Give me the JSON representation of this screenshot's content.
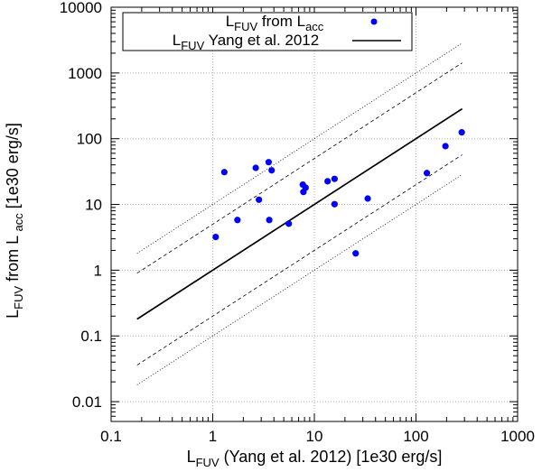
{
  "chart_data": {
    "type": "scatter",
    "x_scale": "log",
    "y_scale": "log",
    "xlim": [
      0.1,
      1000
    ],
    "ylim": [
      0.005,
      10000
    ],
    "grid": true,
    "legend_position": "top-left",
    "x_ticks": [
      {
        "value": 0.1,
        "label": "0.1"
      },
      {
        "value": 1,
        "label": "1"
      },
      {
        "value": 10,
        "label": "10"
      },
      {
        "value": 100,
        "label": "100"
      },
      {
        "value": 1000,
        "label": "1000"
      }
    ],
    "y_ticks": [
      {
        "value": 0.01,
        "label": "0.01"
      },
      {
        "value": 0.1,
        "label": "0.1"
      },
      {
        "value": 1,
        "label": "1"
      },
      {
        "value": 10,
        "label": "10"
      },
      {
        "value": 100,
        "label": "100"
      },
      {
        "value": 1000,
        "label": "1000"
      },
      {
        "value": 10000,
        "label": "10000"
      }
    ],
    "xlabel": {
      "main": "L",
      "sub": "FUV",
      "rest": " (Yang et al. 2012) [1e30 erg/s]"
    },
    "ylabel": {
      "main": "L",
      "sub": "FUV",
      "mid": " from L ",
      "sub2": "acc",
      "rest": " [1e30 erg/s]"
    },
    "series": [
      {
        "name": {
          "main": "L",
          "sub": "FUV",
          "mid": " from L",
          "sub2": "acc"
        },
        "style": "points",
        "color": "#0000ff",
        "points": [
          {
            "x": 1.07,
            "y": 3.2
          },
          {
            "x": 1.3,
            "y": 31
          },
          {
            "x": 1.75,
            "y": 5.8
          },
          {
            "x": 2.65,
            "y": 36
          },
          {
            "x": 2.85,
            "y": 11.8
          },
          {
            "x": 3.55,
            "y": 44
          },
          {
            "x": 3.6,
            "y": 5.8
          },
          {
            "x": 3.8,
            "y": 33
          },
          {
            "x": 5.6,
            "y": 5.1
          },
          {
            "x": 7.7,
            "y": 20
          },
          {
            "x": 7.8,
            "y": 15.5
          },
          {
            "x": 8.2,
            "y": 18
          },
          {
            "x": 13.5,
            "y": 22.5
          },
          {
            "x": 15.8,
            "y": 24.5
          },
          {
            "x": 15.8,
            "y": 10.1
          },
          {
            "x": 25.5,
            "y": 1.8
          },
          {
            "x": 33.5,
            "y": 12.3
          },
          {
            "x": 128,
            "y": 30
          },
          {
            "x": 195,
            "y": 77
          },
          {
            "x": 282,
            "y": 125
          }
        ]
      },
      {
        "name": {
          "main": "L",
          "sub": "FUV",
          "rest": " Yang et al. 2012"
        },
        "style": "line",
        "color": "#000000",
        "x_range": [
          0.18,
          285
        ],
        "factor": 1
      }
    ],
    "guide_lines": [
      {
        "style": "dashed",
        "factor": 5,
        "x_range": [
          0.18,
          285
        ]
      },
      {
        "style": "dashed",
        "factor": 0.2,
        "x_range": [
          0.18,
          285
        ]
      },
      {
        "style": "dotted",
        "factor": 10,
        "x_range": [
          0.18,
          285
        ]
      },
      {
        "style": "dotted",
        "factor": 0.1,
        "x_range": [
          0.18,
          285
        ]
      }
    ]
  }
}
